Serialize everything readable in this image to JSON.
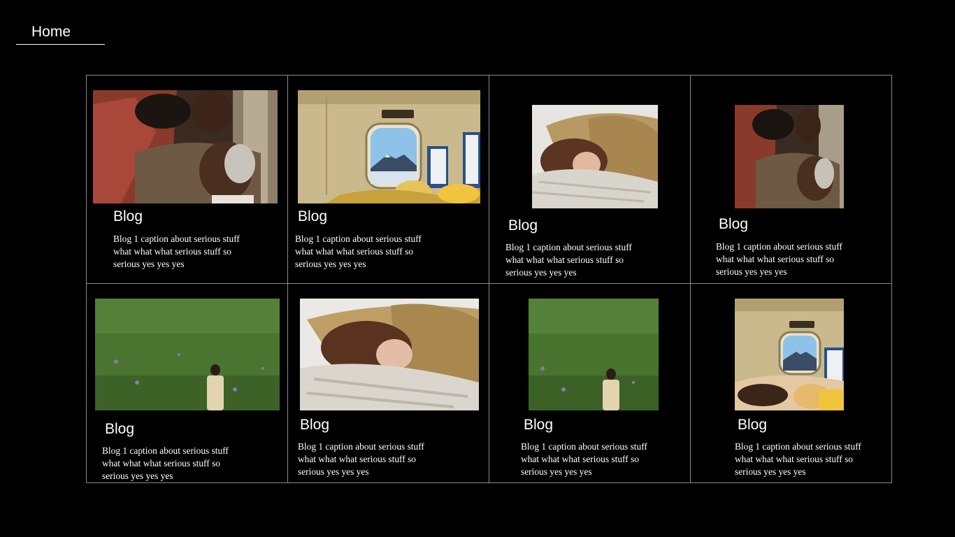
{
  "nav": {
    "home_label": "Home"
  },
  "cards": [
    {
      "title": "Blog",
      "caption": "Blog 1 caption about serious stuff what what what serious stuff so serious yes yes yes",
      "image": "embrace-photo"
    },
    {
      "title": "Blog",
      "caption": "Blog 1 caption about serious stuff what what what serious stuff so serious yes yes yes",
      "image": "train-window-photo"
    },
    {
      "title": "Blog",
      "caption": "Blog 1 caption about serious stuff what what what serious stuff so serious yes yes yes",
      "image": "pillow-photo"
    },
    {
      "title": "Blog",
      "caption": "Blog 1 caption about serious stuff what what what serious stuff so serious yes yes yes",
      "image": "embrace-photo"
    },
    {
      "title": "Blog",
      "caption": "Blog 1 caption about serious stuff what what what serious stuff so serious yes yes yes",
      "image": "grass-field-photo"
    },
    {
      "title": "Blog",
      "caption": "Blog 1 caption about serious stuff what what what serious stuff so serious yes yes yes",
      "image": "pillow-photo"
    },
    {
      "title": "Blog",
      "caption": "Blog 1 caption about serious stuff what what what serious stuff so serious yes yes yes",
      "image": "grass-field-photo"
    },
    {
      "title": "Blog",
      "caption": "Blog 1 caption about serious stuff what what what serious stuff so serious yes yes yes",
      "image": "train-window-photo"
    }
  ]
}
